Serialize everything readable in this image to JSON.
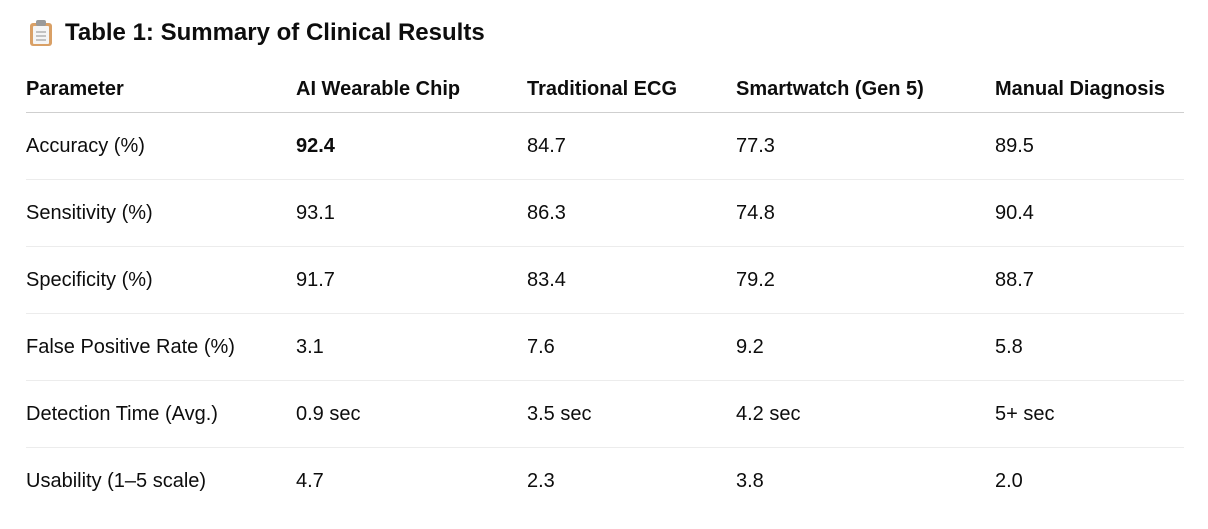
{
  "heading": {
    "icon": "clipboard-icon",
    "title": "Table 1: Summary of Clinical Results"
  },
  "table": {
    "headers": [
      "Parameter",
      "AI Wearable Chip",
      "Traditional ECG",
      "Smartwatch (Gen 5)",
      "Manual Diagnosis"
    ],
    "rows": [
      [
        "Accuracy (%)",
        "92.4",
        "84.7",
        "77.3",
        "89.5"
      ],
      [
        "Sensitivity (%)",
        "93.1",
        "86.3",
        "74.8",
        "90.4"
      ],
      [
        "Specificity (%)",
        "91.7",
        "83.4",
        "79.2",
        "88.7"
      ],
      [
        "False Positive Rate (%)",
        "3.1",
        "7.6",
        "9.2",
        "5.8"
      ],
      [
        "Detection Time (Avg.)",
        "0.9 sec",
        "3.5 sec",
        "4.2 sec",
        "5+ sec"
      ],
      [
        "Usability (1–5 scale)",
        "4.7",
        "2.3",
        "3.8",
        "2.0"
      ]
    ]
  }
}
